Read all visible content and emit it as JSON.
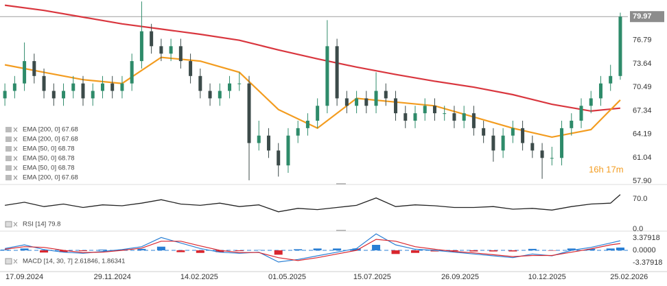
{
  "chart_data": [
    {
      "type": "candlestick",
      "xlim": [
        -0.5,
        67.5
      ],
      "xticks": [
        {
          "value": 2.0,
          "label": "17.09.2024"
        },
        {
          "value": 11.0,
          "label": "29.11.2024"
        },
        {
          "value": 19.9,
          "label": "14.02.2025"
        },
        {
          "value": 28.9,
          "label": "01.05.2025"
        },
        {
          "value": 37.6,
          "label": "15.07.2025"
        },
        {
          "value": 46.6,
          "label": "26.09.2025"
        },
        {
          "value": 55.5,
          "label": "10.12.2025"
        },
        {
          "value": 63.9,
          "label": "25.02.2026"
        }
      ],
      "ylim": [
        57.53,
        82.2
      ],
      "yticks": [
        {
          "value": 57.9,
          "label": "57.90"
        },
        61.04,
        64.19,
        67.34,
        70.49,
        73.64,
        76.79
      ],
      "last_price": 79.97,
      "up_color": "#2e8b6a",
      "down_color": "#3c4b4a",
      "open": [
        69,
        70,
        71,
        74,
        72,
        70,
        69,
        70,
        71,
        69,
        70,
        71,
        70,
        71,
        74,
        78,
        76,
        75,
        76,
        74,
        72,
        70,
        69,
        70,
        71,
        71,
        63,
        64,
        62,
        60,
        64,
        65,
        66,
        68,
        76,
        69,
        68,
        69,
        68,
        70,
        69,
        67,
        66,
        67,
        68,
        67,
        67,
        66,
        67,
        65,
        64,
        62,
        64,
        65,
        63,
        62,
        61,
        61,
        65,
        66,
        68,
        69,
        71,
        72
      ],
      "high": [
        71,
        72,
        76.5,
        75,
        73,
        71,
        71,
        72,
        72,
        71,
        72,
        72,
        72,
        75,
        82,
        79,
        77,
        77,
        77,
        75,
        73,
        71,
        71,
        72,
        72.5,
        72,
        66,
        65,
        63,
        65,
        66,
        67,
        69,
        79.5,
        77,
        70,
        70,
        70,
        72.5,
        71,
        70,
        68,
        68,
        69,
        69,
        68,
        68,
        68,
        68,
        66,
        65,
        65,
        66,
        66,
        64,
        63,
        62.5,
        66,
        67,
        69,
        70,
        72,
        73.5,
        80.5
      ],
      "low": [
        68,
        69,
        70,
        71,
        69,
        68,
        68,
        69,
        68,
        68,
        69,
        69,
        69,
        70,
        73,
        75,
        74,
        74,
        73,
        71,
        69,
        68,
        68,
        69,
        70,
        58,
        62,
        61,
        58.5,
        59,
        63,
        64,
        65,
        67,
        68,
        67,
        67,
        67,
        67,
        68,
        66,
        65,
        65,
        66,
        66,
        66,
        65,
        65,
        64,
        63,
        60.5,
        61,
        63,
        62,
        61,
        58.2,
        60,
        60,
        64,
        65,
        67,
        68,
        70,
        71.5
      ],
      "close": [
        70,
        71,
        74,
        72,
        70,
        69,
        70,
        71,
        69,
        70,
        71,
        70,
        71,
        74,
        78,
        76,
        75,
        76,
        74,
        72,
        70,
        69,
        70,
        71,
        71,
        63,
        64,
        62,
        60,
        64,
        65,
        66,
        68,
        76,
        69,
        68,
        69,
        68,
        70,
        69,
        67,
        66,
        67,
        68,
        67,
        67,
        66,
        67,
        65,
        64,
        62,
        64,
        65,
        63,
        62,
        61,
        61,
        65,
        66,
        68,
        69,
        71,
        72,
        79.97
      ],
      "series": [
        {
          "color": "#d9363e",
          "x": [
            0,
            4,
            8,
            12,
            16,
            20,
            24,
            28,
            32,
            36,
            40,
            44,
            48,
            52,
            56,
            60,
            63
          ],
          "values": [
            81.5,
            80.8,
            79.9,
            79.0,
            78.3,
            77.6,
            76.8,
            75.5,
            74.3,
            73.2,
            72.2,
            71.3,
            70.5,
            69.5,
            68.2,
            67.3,
            67.68
          ]
        },
        {
          "color": "#f39c1f",
          "x": [
            0,
            4,
            8,
            12,
            16,
            20,
            24,
            28,
            32,
            36,
            40,
            44,
            48,
            52,
            56,
            60,
            63
          ],
          "values": [
            73.5,
            72.5,
            71.5,
            71.0,
            74.5,
            74.0,
            72.5,
            67.5,
            65.0,
            69.0,
            68.5,
            68.0,
            66.5,
            65.0,
            63.8,
            64.8,
            68.78
          ]
        }
      ],
      "legend": [
        "EMA [200, 0] 67.68",
        "EMA [200, 0] 67.68",
        "EMA [50, 0] 68.78",
        "EMA [50, 0] 68.78",
        "EMA [50, 0] 68.78",
        "EMA [200, 0] 67.68"
      ],
      "countdown": "16h 17m"
    },
    {
      "type": "line",
      "label": "RSI [14] 79.8",
      "ylim": [
        0,
        100
      ],
      "yticks": [
        {
          "value": 70,
          "label": "70.0"
        },
        {
          "value": 0,
          "label": "0.0"
        }
      ],
      "series": [
        {
          "color": "#222222",
          "x": [
            0,
            2,
            4,
            6,
            8,
            10,
            12,
            14,
            16,
            18,
            20,
            22,
            24,
            26,
            28,
            30,
            32,
            34,
            36,
            38,
            40,
            42,
            44,
            46,
            48,
            50,
            52,
            54,
            56,
            58,
            60,
            62,
            63
          ],
          "values": [
            55,
            62,
            52,
            58,
            50,
            56,
            54,
            60,
            68,
            58,
            55,
            60,
            52,
            56,
            40,
            48,
            45,
            50,
            55,
            72,
            52,
            56,
            54,
            50,
            50,
            52,
            46,
            48,
            44,
            52,
            58,
            60,
            79.8
          ]
        }
      ]
    },
    {
      "type": "macd",
      "label": "MACD [14, 30, 7] 2.61846, 1.86341",
      "ylim": [
        -5.63,
        4.69
      ],
      "yticks": [
        3.37918,
        {
          "value": 0,
          "label": "0.0000"
        },
        -3.37918
      ],
      "x": [
        0,
        2,
        4,
        6,
        8,
        10,
        12,
        14,
        16,
        18,
        20,
        22,
        24,
        26,
        28,
        30,
        32,
        34,
        36,
        38,
        40,
        42,
        44,
        46,
        48,
        50,
        52,
        54,
        56,
        58,
        60,
        62,
        63
      ],
      "histogram": [
        0.2,
        0.5,
        -0.6,
        -0.5,
        -0.2,
        0.2,
        0.2,
        0.4,
        1.0,
        -0.5,
        -0.7,
        -0.5,
        -0.2,
        0.1,
        -1.2,
        0.3,
        0.5,
        0.5,
        0.5,
        1.5,
        -1.0,
        -0.7,
        -0.3,
        -0.2,
        -0.3,
        -0.3,
        -0.3,
        0.4,
        -0.1,
        0.5,
        0.4,
        0.5,
        0.76
      ],
      "positive_color": "#2a7fd4",
      "negative_color": "#d9262e",
      "series": [
        {
          "color": "#2a7fd4",
          "values": [
            0.5,
            1.5,
            0.2,
            -0.5,
            -0.8,
            -0.3,
            0.2,
            1.0,
            3.5,
            2.0,
            0.5,
            -0.5,
            -0.8,
            -0.5,
            -3.2,
            -2.5,
            -1.5,
            -0.5,
            0.5,
            4.5,
            1.5,
            0.3,
            0,
            -0.5,
            -1,
            -1.5,
            -2,
            -1,
            -1.5,
            0,
            0.8,
            2.0,
            2.62
          ]
        },
        {
          "color": "#d9262e",
          "values": [
            0.3,
            1.0,
            0.8,
            0,
            -0.6,
            -0.5,
            0,
            0.6,
            2.5,
            2.5,
            1.2,
            0,
            -0.6,
            -0.6,
            -2.0,
            -2.8,
            -2.0,
            -1.0,
            0,
            3.0,
            2.5,
            1.0,
            0.3,
            -0.3,
            -0.7,
            -1.2,
            -1.7,
            -1.4,
            -1.4,
            -0.5,
            0.4,
            1.5,
            1.86
          ]
        }
      ]
    }
  ]
}
